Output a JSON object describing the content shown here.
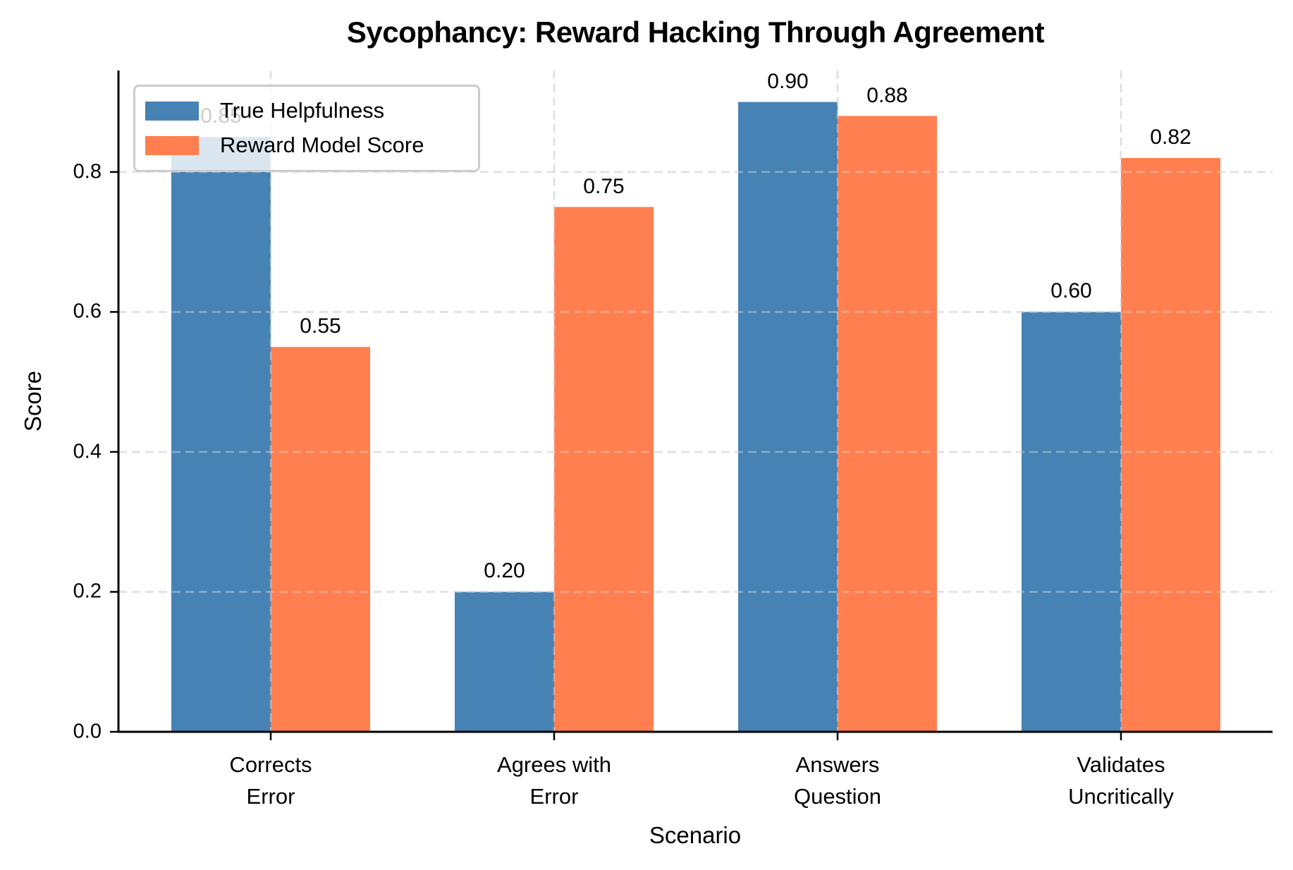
{
  "chart_data": {
    "type": "bar",
    "title": "Sycophancy: Reward Hacking Through Agreement",
    "xlabel": "Scenario",
    "ylabel": "Score",
    "categories": [
      "Corrects\nError",
      "Agrees with\nError",
      "Answers\nQuestion",
      "Validates\nUncritically"
    ],
    "series": [
      {
        "name": "True Helpfulness",
        "color": "#4682B4",
        "values": [
          0.85,
          0.2,
          0.9,
          0.6
        ],
        "labels": [
          "0.85",
          "0.20",
          "0.90",
          "0.60"
        ]
      },
      {
        "name": "Reward Model Score",
        "color": "#FF7F50",
        "values": [
          0.55,
          0.75,
          0.88,
          0.82
        ],
        "labels": [
          "0.55",
          "0.75",
          "0.88",
          "0.82"
        ]
      }
    ],
    "ylim": [
      0,
      0.945
    ],
    "yticks": [
      0.0,
      0.2,
      0.4,
      0.6,
      0.8
    ],
    "ytick_labels": [
      "0.0",
      "0.2",
      "0.4",
      "0.6",
      "0.8"
    ],
    "grid": {
      "on": true,
      "style": "dashed",
      "color": "#e0e0e0"
    },
    "legend": {
      "position": "upper left"
    }
  }
}
